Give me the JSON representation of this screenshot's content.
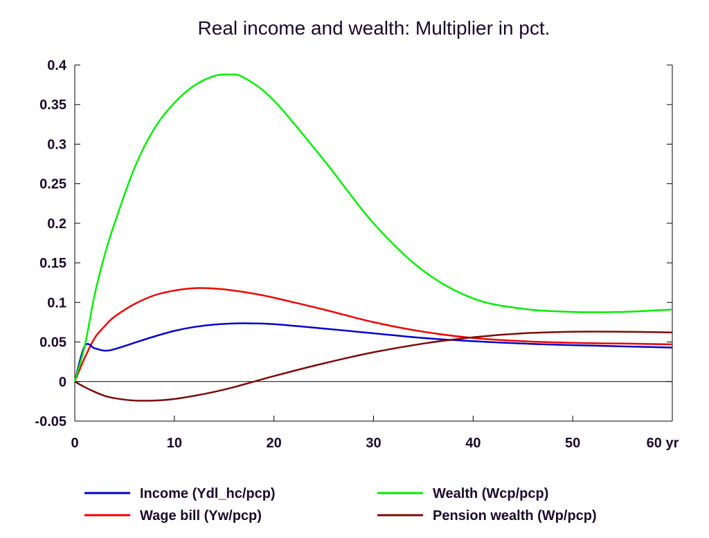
{
  "chart_data": {
    "type": "line",
    "title": "Real income and wealth: Multiplier in pct.",
    "xlabel": "",
    "ylabel": "",
    "x_unit": "yr",
    "xlim": [
      0,
      60
    ],
    "ylim": [
      -0.05,
      0.4
    ],
    "xticks": [
      0,
      10,
      20,
      30,
      40,
      50,
      60
    ],
    "xtick_labels": [
      "0",
      "10",
      "20",
      "30",
      "40",
      "50",
      "60 yr"
    ],
    "yticks": [
      -0.05,
      0,
      0.05,
      0.1,
      0.15,
      0.2,
      0.25,
      0.3,
      0.35,
      0.4
    ],
    "ytick_labels": [
      "-0.05",
      "0",
      "0.05",
      "0.1",
      "0.15",
      "0.2",
      "0.25",
      "0.3",
      "0.35",
      "0.4"
    ],
    "grid": false,
    "zero_line": true,
    "legend_position": "bottom",
    "series": [
      {
        "name": "Income (Ydl_hc/pcp)",
        "color": "#0000cc",
        "x": [
          0,
          1,
          2,
          3,
          4,
          6,
          8,
          10,
          12,
          14,
          16,
          18,
          20,
          25,
          30,
          35,
          40,
          45,
          50,
          55,
          60
        ],
        "y": [
          0,
          0.045,
          0.042,
          0.039,
          0.041,
          0.049,
          0.057,
          0.064,
          0.069,
          0.072,
          0.0735,
          0.0735,
          0.0725,
          0.067,
          0.061,
          0.055,
          0.051,
          0.048,
          0.046,
          0.0445,
          0.043
        ]
      },
      {
        "name": "Wage bill (Yw/pcp)",
        "color": "#ee0000",
        "x": [
          0,
          1,
          2,
          3,
          4,
          6,
          8,
          10,
          12,
          14,
          16,
          18,
          20,
          25,
          30,
          35,
          40,
          45,
          50,
          55,
          60
        ],
        "y": [
          0,
          0.03,
          0.055,
          0.07,
          0.082,
          0.098,
          0.109,
          0.115,
          0.118,
          0.1175,
          0.115,
          0.111,
          0.106,
          0.091,
          0.075,
          0.063,
          0.055,
          0.051,
          0.049,
          0.048,
          0.047
        ]
      },
      {
        "name": "Wealth (Wcp/pcp)",
        "color": "#00ee00",
        "x": [
          0,
          1,
          2,
          3,
          4,
          6,
          8,
          10,
          12,
          14,
          15.5,
          17,
          20,
          25,
          30,
          35,
          40,
          45,
          50,
          55,
          60
        ],
        "y": [
          0,
          0.045,
          0.11,
          0.16,
          0.2,
          0.27,
          0.32,
          0.352,
          0.374,
          0.386,
          0.388,
          0.384,
          0.355,
          0.28,
          0.2,
          0.14,
          0.105,
          0.092,
          0.088,
          0.088,
          0.091
        ]
      },
      {
        "name": "Pension wealth (Wp/pcp)",
        "color": "#7a0a0a",
        "x": [
          0,
          1,
          2,
          3,
          4,
          6,
          8,
          10,
          12,
          14,
          16,
          18,
          20,
          25,
          30,
          35,
          40,
          45,
          50,
          55,
          60
        ],
        "y": [
          0,
          -0.007,
          -0.013,
          -0.018,
          -0.021,
          -0.024,
          -0.024,
          -0.022,
          -0.018,
          -0.013,
          -0.007,
          0,
          0.007,
          0.023,
          0.037,
          0.048,
          0.056,
          0.061,
          0.063,
          0.063,
          0.062
        ]
      }
    ]
  }
}
